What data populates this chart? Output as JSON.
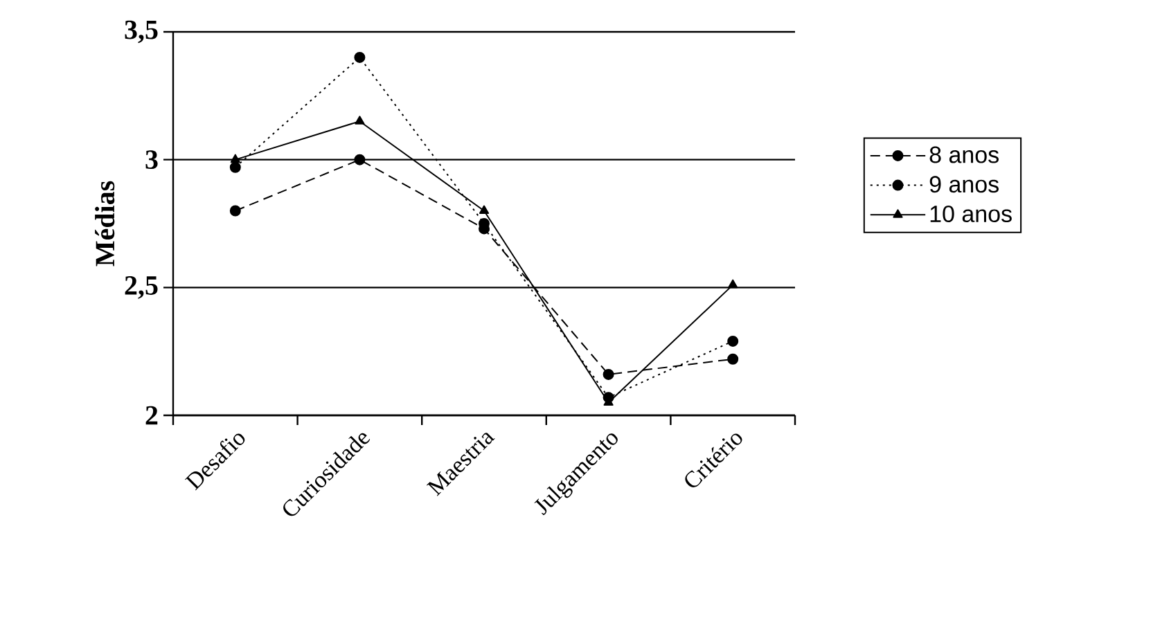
{
  "chart_data": {
    "type": "line",
    "ylabel": "Médias",
    "categories": [
      "Desafio",
      "Curiosidade",
      "Maestria",
      "Julgamento",
      "Critério"
    ],
    "series": [
      {
        "name": "8 anos",
        "color": "#000000",
        "marker": "circle",
        "line_style": "dashed",
        "values": [
          2.8,
          3.0,
          2.73,
          2.16,
          2.22
        ]
      },
      {
        "name": "9 anos",
        "color": "#000000",
        "marker": "circle",
        "line_style": "dotted",
        "values": [
          2.97,
          3.4,
          2.75,
          2.07,
          2.29
        ]
      },
      {
        "name": "10 anos",
        "color": "#000000",
        "marker": "triangle",
        "line_style": "solid",
        "values": [
          3.0,
          3.15,
          2.8,
          2.05,
          2.51
        ]
      }
    ],
    "ylim": [
      2,
      3.5
    ],
    "yticks": [
      2,
      {
        "value": 2.5,
        "label": "2,5"
      },
      3,
      {
        "value": 3.5,
        "label": "3,5"
      }
    ],
    "grid": "y",
    "legend": "right"
  }
}
